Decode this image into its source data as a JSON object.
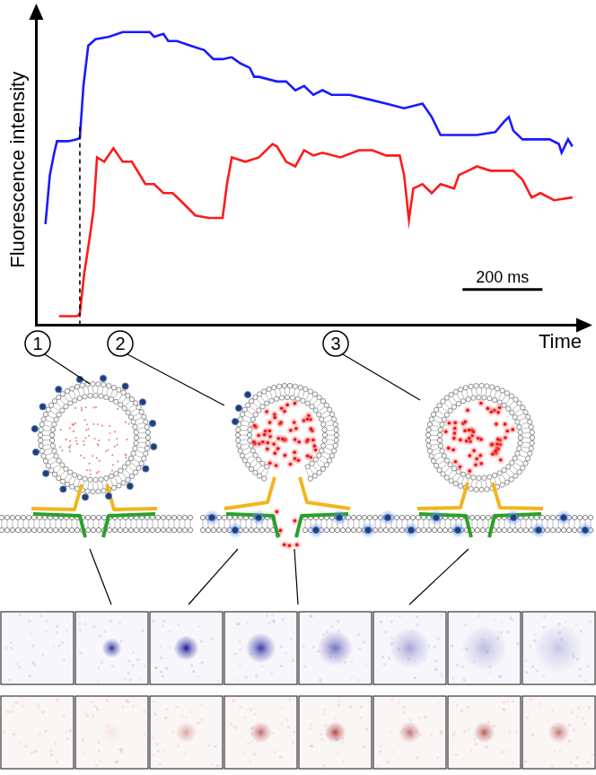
{
  "chart_data": {
    "type": "line",
    "x_label": "Time",
    "y_label": "Fluorescence intensity",
    "xlim": [
      0,
      1364
    ],
    "ylim": [
      0,
      100
    ],
    "grid": false,
    "tick_labels": false,
    "series": [
      {
        "color": "#1a1aff",
        "x": [
          23,
          34,
          45,
          52,
          80,
          102,
          109,
          118,
          130,
          148,
          182,
          216,
          250,
          284,
          295,
          318,
          330,
          352,
          386,
          420,
          443,
          466,
          489,
          511,
          534,
          545,
          557,
          602,
          625,
          648,
          670,
          693,
          716,
          739,
          784,
          830,
          875,
          920,
          966,
          989,
          1011,
          1057,
          1102,
          1148,
          1170,
          1182,
          1193,
          1216,
          1261,
          1284,
          1307,
          1314,
          1330,
          1341
        ],
        "values": [
          32.5,
          48.3,
          55.5,
          59.2,
          59.2,
          59.8,
          60.3,
          77.0,
          89.9,
          92.0,
          92.8,
          94.3,
          94.3,
          94.3,
          92.8,
          93.7,
          91.4,
          91.4,
          89.9,
          88.5,
          85.6,
          85.6,
          86.2,
          84.2,
          82.8,
          79.9,
          79.9,
          78.4,
          78.4,
          75.6,
          77.0,
          74.1,
          75.6,
          74.1,
          74.1,
          72.7,
          71.3,
          69.8,
          71.3,
          67.0,
          61.2,
          61.2,
          61.2,
          62.1,
          65.5,
          67.0,
          62.6,
          59.8,
          59.8,
          59.8,
          58.3,
          55.5,
          59.8,
          57.5
        ]
      },
      {
        "color": "#ff1a1a",
        "x": [
          57,
          102,
          109,
          120,
          132,
          143,
          152,
          170,
          193,
          216,
          239,
          273,
          295,
          318,
          341,
          364,
          398,
          432,
          466,
          477,
          489,
          523,
          557,
          591,
          602,
          625,
          648,
          670,
          693,
          716,
          761,
          807,
          841,
          875,
          909,
          920,
          932,
          943,
          966,
          989,
          1011,
          1045,
          1057,
          1080,
          1102,
          1136,
          1193,
          1216,
          1239,
          1261,
          1295,
          1341
        ],
        "values": [
          2.9,
          2.9,
          3.7,
          16.7,
          26.7,
          36.8,
          54.0,
          52.6,
          56.9,
          52.6,
          52.6,
          45.4,
          45.4,
          42.5,
          42.5,
          39.7,
          35.3,
          34.5,
          34.5,
          45.4,
          54.0,
          52.6,
          54.0,
          58.3,
          57.5,
          52.6,
          51.1,
          56.3,
          54.6,
          55.5,
          54.0,
          56.3,
          56.3,
          54.6,
          54.6,
          48.3,
          33.9,
          44.0,
          45.4,
          42.5,
          45.4,
          44.0,
          48.3,
          49.7,
          51.1,
          49.7,
          49.7,
          46.8,
          41.1,
          42.5,
          40.2,
          41.1
        ]
      }
    ],
    "annotations": [
      {
        "type": "vline",
        "x": 109,
        "y": [
          0,
          65
        ],
        "line_style": "dashed"
      },
      {
        "type": "scale_bar",
        "x": [
          1066,
          1266
        ],
        "y": 11.5,
        "label": "200 ms"
      }
    ]
  },
  "diagram": {
    "stage_labels": [
      "1",
      "2",
      "3"
    ],
    "frames": {
      "blue": [
        0,
        0.85,
        0.95,
        0.8,
        0.55,
        0.35,
        0.25,
        0.2
      ],
      "red": [
        0,
        0.08,
        0.35,
        0.6,
        0.75,
        0.55,
        0.65,
        0.55
      ]
    }
  }
}
